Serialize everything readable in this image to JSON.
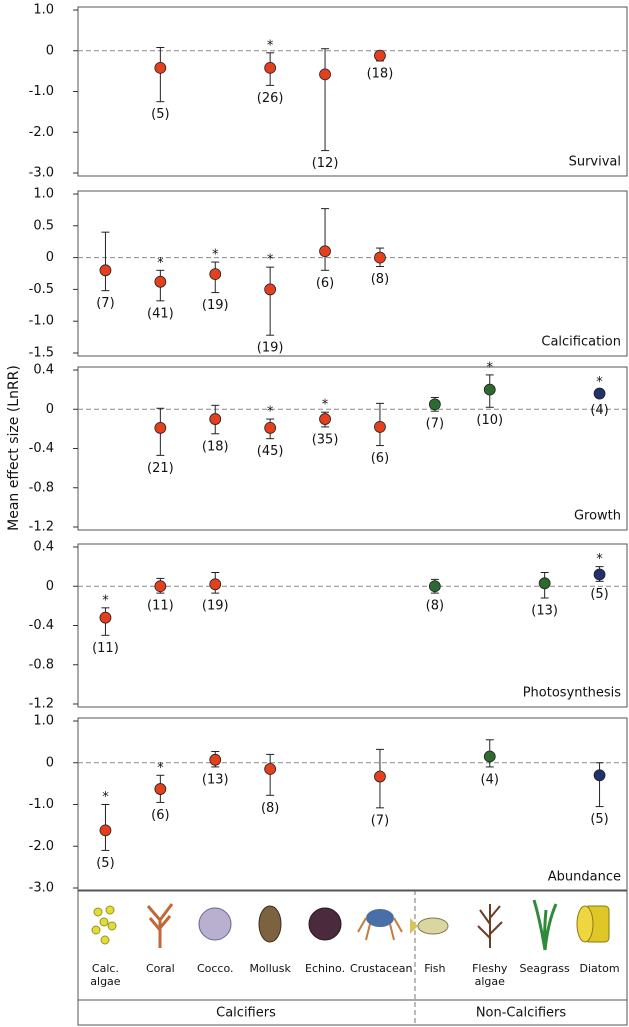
{
  "ylabel": "Mean effect size (LnRR)",
  "categories": [
    "Calc. algae",
    "Coral",
    "Cocco.",
    "Mollusk",
    "Echino.",
    "Crustacean",
    "Fish",
    "Fleshy algae",
    "Seagrass",
    "Diatom"
  ],
  "point_colors": [
    "#e5401e",
    "#e5401e",
    "#e5401e",
    "#e5401e",
    "#e5401e",
    "#e5401e",
    "#2d6a2f",
    "#2d6a2f",
    "#2d6a2f",
    "#23306e"
  ],
  "groups": [
    "Calcifiers",
    "Non-Calcifiers"
  ],
  "chart_data": [
    {
      "type": "errorbar",
      "title": "Survival",
      "ylim": [
        -3,
        1
      ],
      "yticks": [
        {
          "value": 1,
          "label": "1.0"
        },
        0,
        {
          "value": -1,
          "label": "-1.0"
        },
        {
          "value": -2,
          "label": "-2.0"
        },
        {
          "value": -3,
          "label": "-3.0"
        }
      ],
      "values": [
        null,
        -0.42,
        null,
        -0.42,
        -0.58,
        -0.12,
        null,
        null,
        null,
        null
      ],
      "lower": [
        null,
        -1.25,
        null,
        -0.85,
        -2.45,
        -0.25,
        null,
        null,
        null,
        null
      ],
      "upper": [
        null,
        0.08,
        null,
        -0.05,
        0.05,
        -0.03,
        null,
        null,
        null,
        null
      ],
      "n_labels": [
        null,
        "(5)",
        null,
        "(26)",
        "(12)",
        "(18)",
        null,
        null,
        null,
        null
      ],
      "significance": [
        null,
        null,
        null,
        "*",
        null,
        null,
        null,
        null,
        null,
        null
      ]
    },
    {
      "type": "errorbar",
      "title": "Calcification",
      "ylim": [
        -1.5,
        1
      ],
      "yticks": [
        {
          "value": 1,
          "label": "1.0"
        },
        0.5,
        0,
        -0.5,
        {
          "value": -1,
          "label": "-1.0"
        },
        -1.5
      ],
      "values": [
        -0.2,
        -0.38,
        -0.26,
        -0.5,
        0.1,
        0.0,
        null,
        null,
        null,
        null
      ],
      "lower": [
        -0.52,
        -0.68,
        -0.55,
        -1.22,
        -0.2,
        -0.14,
        null,
        null,
        null,
        null
      ],
      "upper": [
        0.4,
        -0.2,
        -0.07,
        -0.15,
        0.77,
        0.15,
        null,
        null,
        null,
        null
      ],
      "n_labels": [
        "(7)",
        "(41)",
        "(19)",
        "(19)",
        "(6)",
        "(8)",
        null,
        null,
        null,
        null
      ],
      "significance": [
        null,
        "*",
        "*",
        "*",
        null,
        null,
        null,
        null,
        null,
        null
      ]
    },
    {
      "type": "errorbar",
      "title": "Growth",
      "ylim": [
        -1.2,
        0.4
      ],
      "yticks": [
        0.4,
        0,
        -0.4,
        -0.8,
        -1.2
      ],
      "values": [
        null,
        -0.19,
        -0.1,
        -0.19,
        -0.1,
        -0.18,
        0.05,
        0.2,
        null,
        0.16
      ],
      "lower": [
        null,
        -0.47,
        -0.25,
        -0.3,
        -0.18,
        -0.37,
        -0.02,
        0.02,
        null,
        0.12
      ],
      "upper": [
        null,
        0.01,
        0.04,
        -0.1,
        -0.03,
        0.06,
        0.12,
        0.35,
        null,
        0.2
      ],
      "n_labels": [
        null,
        "(21)",
        "(18)",
        "(45)",
        "(35)",
        "(6)",
        "(7)",
        "(10)",
        null,
        "(4)"
      ],
      "significance": [
        null,
        null,
        null,
        "*",
        "*",
        null,
        null,
        "*",
        null,
        "*"
      ]
    },
    {
      "type": "errorbar",
      "title": "Photosynthesis",
      "ylim": [
        -1.2,
        0.4
      ],
      "yticks": [
        0.4,
        0,
        -0.4,
        -0.8,
        -1.2
      ],
      "values": [
        -0.32,
        0.0,
        0.02,
        null,
        null,
        null,
        0.0,
        null,
        0.03,
        0.12
      ],
      "lower": [
        -0.5,
        -0.07,
        -0.07,
        null,
        null,
        null,
        -0.07,
        null,
        -0.12,
        0.05
      ],
      "upper": [
        -0.22,
        0.08,
        0.14,
        null,
        null,
        null,
        0.07,
        null,
        0.14,
        0.2
      ],
      "n_labels": [
        "(11)",
        "(11)",
        "(19)",
        null,
        null,
        null,
        "(8)",
        null,
        "(13)",
        "(5)"
      ],
      "significance": [
        "*",
        null,
        null,
        null,
        null,
        null,
        null,
        null,
        null,
        "*"
      ]
    },
    {
      "type": "errorbar",
      "title": "Abundance",
      "ylim": [
        -3,
        1
      ],
      "yticks": [
        {
          "value": 1,
          "label": "1.0"
        },
        0,
        {
          "value": -1,
          "label": "-1.0"
        },
        {
          "value": -2,
          "label": "-2.0"
        },
        {
          "value": -3,
          "label": "-3.0"
        }
      ],
      "values": [
        -1.62,
        -0.63,
        0.07,
        -0.15,
        null,
        -0.33,
        null,
        0.15,
        null,
        -0.3
      ],
      "lower": [
        -2.1,
        -0.95,
        -0.1,
        -0.78,
        null,
        -1.08,
        null,
        -0.1,
        null,
        -1.05
      ],
      "upper": [
        -1.0,
        -0.3,
        0.27,
        0.2,
        null,
        0.32,
        null,
        0.55,
        null,
        0.0
      ],
      "n_labels": [
        "(5)",
        "(6)",
        "(13)",
        "(8)",
        null,
        "(7)",
        null,
        "(4)",
        null,
        "(5)"
      ],
      "significance": [
        "*",
        "*",
        null,
        null,
        null,
        null,
        null,
        null,
        null,
        null
      ]
    }
  ]
}
